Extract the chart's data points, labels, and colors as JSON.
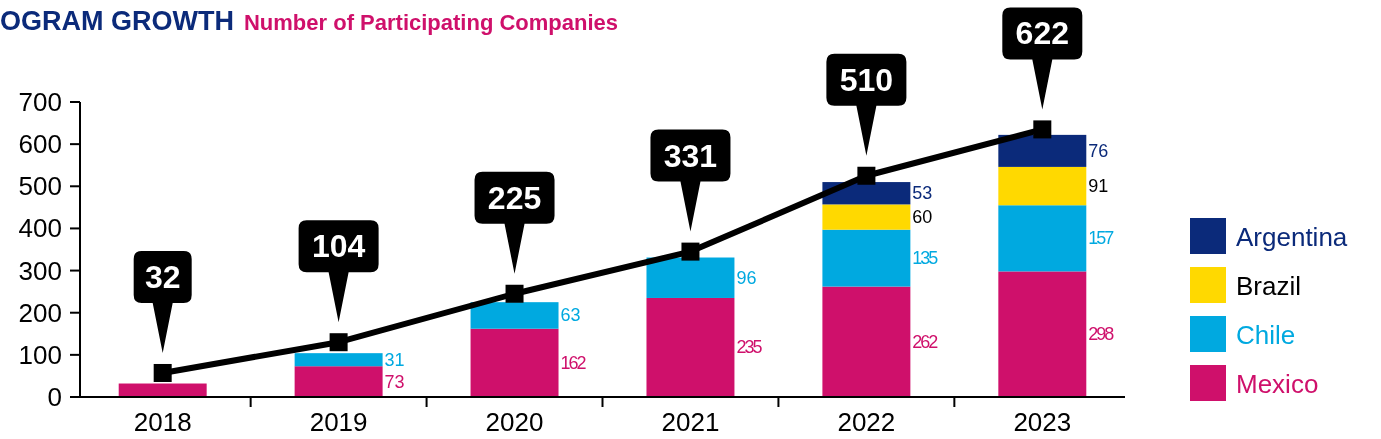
{
  "chart_data": {
    "type": "bar",
    "title": "OGRAM GROWTH",
    "subtitle": "Number of Participating Companies",
    "categories": [
      "2018",
      "2019",
      "2020",
      "2021",
      "2022",
      "2023"
    ],
    "stacked": true,
    "series": [
      {
        "name": "Mexico",
        "color": "#cf106b",
        "values": [
          32,
          73,
          162,
          235,
          262,
          298
        ],
        "value_labels": [
          null,
          "73",
          "162",
          "235",
          "262",
          "298"
        ]
      },
      {
        "name": "Chile",
        "color": "#00a9e0",
        "values": [
          null,
          31,
          63,
          96,
          135,
          157
        ],
        "value_labels": [
          null,
          "31",
          "63",
          "96",
          "135",
          "157"
        ]
      },
      {
        "name": "Brazil",
        "color": "#ffd900",
        "values": [
          null,
          null,
          null,
          null,
          60,
          91
        ],
        "value_labels": [
          null,
          null,
          null,
          null,
          "60",
          "91"
        ]
      },
      {
        "name": "Argentina",
        "color": "#0b2a7a",
        "values": [
          null,
          null,
          null,
          null,
          53,
          76
        ],
        "value_labels": [
          null,
          null,
          null,
          null,
          "53",
          "76"
        ]
      },
      {
        "type": "line",
        "color": "#000000",
        "marker": "square",
        "values": [
          57,
          130,
          245,
          345,
          525,
          635
        ]
      }
    ],
    "annotations": [
      {
        "text": "32",
        "x": "2018",
        "y": 57
      },
      {
        "text": "104",
        "x": "2019",
        "y": 130
      },
      {
        "text": "225",
        "x": "2020",
        "y": 245
      },
      {
        "text": "331",
        "x": "2021",
        "y": 345
      },
      {
        "text": "510",
        "x": "2022",
        "y": 525
      },
      {
        "text": "622",
        "x": "2023",
        "y": 635
      }
    ],
    "ylim": [
      0,
      700
    ],
    "yticks": [
      0,
      100,
      200,
      300,
      400,
      500,
      600,
      700
    ],
    "grid": false,
    "legend": "right"
  }
}
